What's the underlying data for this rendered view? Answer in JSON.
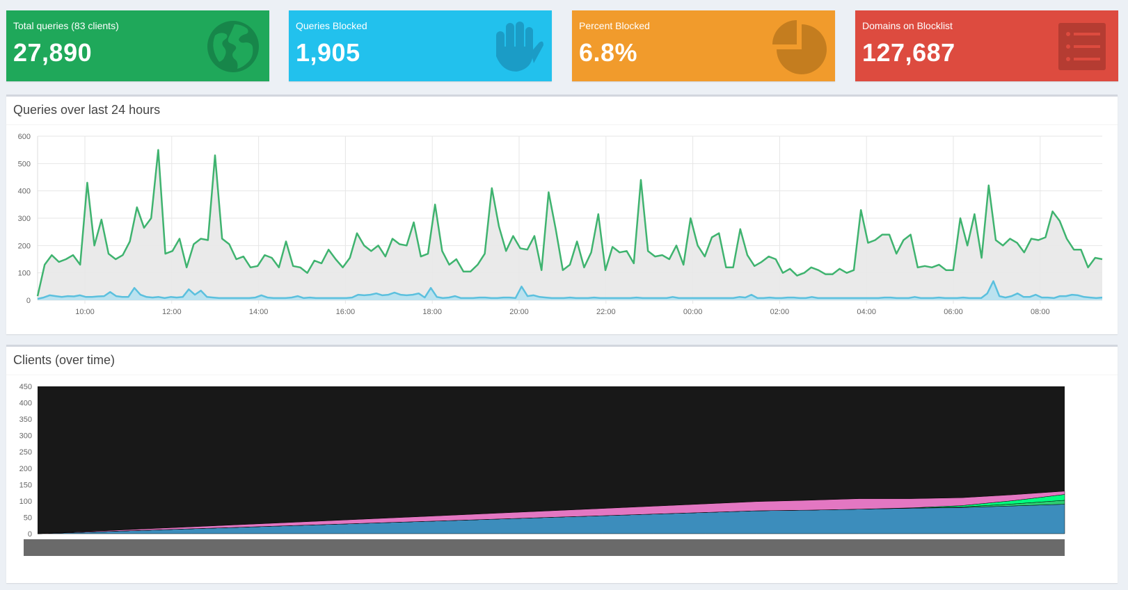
{
  "tiles": [
    {
      "label": "Total queries (83 clients)",
      "value": "27,890",
      "color": "#1fa85a",
      "icon": "globe-icon"
    },
    {
      "label": "Queries Blocked",
      "value": "1,905",
      "color": "#22c1ed",
      "icon": "hand-icon"
    },
    {
      "label": "Percent Blocked",
      "value": "6.8%",
      "color": "#f19b2c",
      "icon": "pie-chart-icon"
    },
    {
      "label": "Domains on Blocklist",
      "value": "127,687",
      "color": "#dd4b3f",
      "icon": "list-icon"
    }
  ],
  "queries_panel": {
    "title": "Queries over last 24 hours"
  },
  "clients_panel": {
    "title": "Clients (over time)"
  },
  "chart_data": [
    {
      "type": "area",
      "x_ticks": [
        "10:00",
        "12:00",
        "14:00",
        "16:00",
        "18:00",
        "20:00",
        "22:00",
        "00:00",
        "02:00",
        "04:00",
        "06:00",
        "08:00"
      ],
      "ylim": [
        0,
        600
      ],
      "y_ticks": [
        0,
        100,
        200,
        300,
        400,
        500,
        600
      ],
      "grid": true,
      "series": [
        {
          "color": "#3fb36f",
          "fill": "#e8e8e8",
          "values": [
            15,
            130,
            165,
            140,
            150,
            165,
            130,
            430,
            200,
            295,
            170,
            150,
            165,
            215,
            340,
            265,
            300,
            550,
            170,
            180,
            225,
            120,
            205,
            225,
            220,
            530,
            225,
            205,
            150,
            160,
            120,
            125,
            165,
            155,
            120,
            215,
            125,
            120,
            100,
            145,
            135,
            185,
            150,
            120,
            155,
            245,
            200,
            180,
            200,
            160,
            225,
            205,
            200,
            285,
            160,
            170,
            350,
            180,
            130,
            150,
            105,
            105,
            130,
            170,
            410,
            270,
            180,
            235,
            190,
            185,
            235,
            110,
            395,
            260,
            110,
            130,
            215,
            120,
            175,
            315,
            110,
            195,
            175,
            180,
            135,
            440,
            180,
            160,
            165,
            150,
            200,
            130,
            300,
            200,
            160,
            230,
            245,
            120,
            120,
            260,
            165,
            125,
            140,
            160,
            150,
            100,
            115,
            90,
            100,
            120,
            110,
            95,
            95,
            115,
            100,
            110,
            330,
            210,
            220,
            240,
            240,
            170,
            220,
            240,
            120,
            125,
            120,
            130,
            110,
            110,
            300,
            200,
            315,
            155,
            420,
            220,
            200,
            225,
            210,
            175,
            225,
            220,
            230,
            325,
            290,
            225,
            185,
            185,
            120,
            155,
            150
          ]
        },
        {
          "color": "#5bc0de",
          "fill": "#b6e1ef",
          "values": [
            5,
            10,
            18,
            15,
            12,
            15,
            14,
            18,
            12,
            12,
            14,
            15,
            30,
            15,
            12,
            12,
            45,
            20,
            12,
            10,
            12,
            8,
            12,
            10,
            12,
            40,
            20,
            35,
            12,
            10,
            8,
            8,
            8,
            8,
            8,
            8,
            10,
            18,
            10,
            8,
            8,
            8,
            10,
            15,
            8,
            10,
            8,
            8,
            8,
            8,
            8,
            8,
            10,
            20,
            18,
            20,
            25,
            18,
            20,
            28,
            20,
            18,
            20,
            25,
            10,
            45,
            12,
            8,
            10,
            15,
            8,
            8,
            8,
            10,
            10,
            8,
            8,
            10,
            10,
            8,
            50,
            15,
            18,
            12,
            10,
            8,
            8,
            8,
            10,
            8,
            8,
            8,
            10,
            8,
            8,
            8,
            8,
            8,
            8,
            10,
            8,
            8,
            8,
            8,
            8,
            12,
            8,
            8,
            8,
            8,
            8,
            8,
            8,
            8,
            8,
            8,
            12,
            10,
            20,
            8,
            8,
            10,
            8,
            8,
            10,
            10,
            8,
            8,
            12,
            8,
            8,
            8,
            8,
            8,
            8,
            8,
            8,
            8,
            8,
            8,
            10,
            10,
            8,
            8,
            8,
            12,
            8,
            8,
            8,
            10,
            8,
            8,
            8,
            10,
            8,
            8,
            8,
            25,
            70,
            15,
            10,
            15,
            25,
            12,
            12,
            20,
            10,
            10,
            8,
            15,
            15,
            20,
            18,
            12,
            10,
            8,
            10
          ]
        }
      ]
    },
    {
      "type": "area",
      "ylim": [
        0,
        450
      ],
      "y_ticks": [
        0,
        50,
        100,
        150,
        200,
        250,
        300,
        350,
        400,
        450
      ],
      "grid": false,
      "background": "#181818",
      "series": [
        {
          "color": "#3c8dbc",
          "values": [
            0,
            5,
            10,
            15,
            20,
            25,
            30,
            35,
            40,
            45,
            50,
            55,
            60,
            65,
            70,
            72,
            75,
            78,
            80,
            85,
            90
          ]
        },
        {
          "color": "#2ecc71",
          "values": [
            0,
            0,
            0,
            0,
            0,
            0,
            0,
            0,
            0,
            0,
            0,
            0,
            0,
            0,
            0,
            0,
            0,
            0,
            2,
            6,
            12
          ]
        },
        {
          "color": "#00ff7f",
          "values": [
            0,
            0,
            0,
            0,
            0,
            0,
            0,
            0,
            0,
            0,
            0,
            0,
            0,
            0,
            0,
            0,
            0,
            1,
            4,
            10,
            18
          ]
        },
        {
          "color": "#e377c2",
          "values": [
            0,
            2,
            4,
            6,
            8,
            10,
            12,
            14,
            16,
            18,
            20,
            22,
            24,
            26,
            28,
            30,
            32,
            28,
            24,
            18,
            10
          ]
        }
      ]
    }
  ]
}
